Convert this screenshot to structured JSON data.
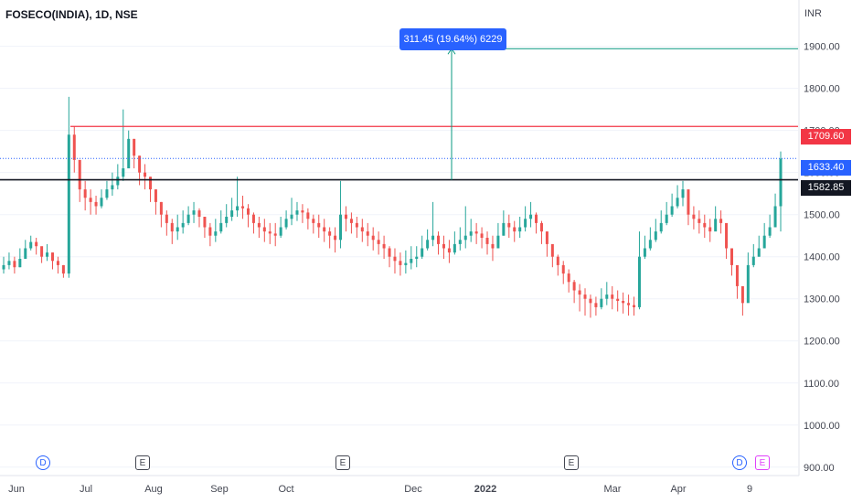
{
  "header": {
    "symbol_title": "FOSECO(INDIA), 1D, NSE",
    "currency": "INR"
  },
  "measure_callout": {
    "text": "311.45 (19.64%) 6229"
  },
  "price_tags": {
    "resistance": "1709.60",
    "last": "1633.40",
    "support": "1582.85"
  },
  "events": [
    {
      "label": "D",
      "kind": "dividend"
    },
    {
      "label": "E",
      "kind": "earnings"
    },
    {
      "label": "E",
      "kind": "earnings"
    },
    {
      "label": "E",
      "kind": "earnings"
    },
    {
      "label": "D",
      "kind": "dividend"
    },
    {
      "label": "E",
      "kind": "earnings"
    }
  ],
  "colors": {
    "up": "#26a69a",
    "down": "#ef5350",
    "resistance": "#f23645",
    "measure": "#089981",
    "support": "#131722",
    "accent": "#2962ff"
  },
  "chart_data": {
    "type": "candlestick",
    "ylim": [
      880,
      2010
    ],
    "y_ticks": [
      "900.00",
      "1000.00",
      "1100.00",
      "1200.00",
      "1300.00",
      "1400.00",
      "1500.00",
      "1600.00",
      "1700.00",
      "1800.00",
      "1900.00"
    ],
    "x_ticks": [
      "Jun",
      "Jul",
      "Aug",
      "Sep",
      "Oct",
      "Dec",
      "2022",
      "Mar",
      "Apr",
      "9"
    ],
    "horizontal_lines": [
      {
        "name": "resistance",
        "value": 1709.6
      },
      {
        "name": "last",
        "value": 1633.4
      },
      {
        "name": "support",
        "value": 1582.85
      }
    ],
    "measure": {
      "from": 1582.85,
      "to": 1894.3,
      "change": 311.45,
      "change_pct": 19.64,
      "bars": 6229
    },
    "close_series": [
      1380,
      1390,
      1375,
      1395,
      1420,
      1435,
      1425,
      1400,
      1410,
      1390,
      1380,
      1360,
      1690,
      1630,
      1560,
      1540,
      1530,
      1520,
      1540,
      1560,
      1570,
      1590,
      1610,
      1680,
      1640,
      1600,
      1590,
      1560,
      1530,
      1500,
      1480,
      1460,
      1470,
      1480,
      1500,
      1510,
      1495,
      1470,
      1450,
      1460,
      1480,
      1495,
      1510,
      1520,
      1515,
      1500,
      1480,
      1470,
      1460,
      1455,
      1450,
      1470,
      1490,
      1500,
      1510,
      1505,
      1490,
      1480,
      1470,
      1460,
      1450,
      1440,
      1500,
      1490,
      1480,
      1470,
      1460,
      1450,
      1440,
      1430,
      1420,
      1400,
      1390,
      1380,
      1385,
      1395,
      1400,
      1420,
      1440,
      1450,
      1430,
      1420,
      1410,
      1430,
      1440,
      1450,
      1460,
      1455,
      1445,
      1430,
      1420,
      1450,
      1480,
      1470,
      1460,
      1470,
      1490,
      1500,
      1480,
      1460,
      1430,
      1400,
      1380,
      1360,
      1340,
      1320,
      1310,
      1300,
      1290,
      1280,
      1300,
      1310,
      1300,
      1295,
      1290,
      1285,
      1280,
      1400,
      1420,
      1440,
      1460,
      1480,
      1500,
      1520,
      1540,
      1560,
      1500,
      1490,
      1480,
      1470,
      1460,
      1490,
      1480,
      1420,
      1380,
      1330,
      1290,
      1380,
      1400,
      1420,
      1450,
      1470,
      1520,
      1633
    ],
    "high_series": [
      1400,
      1410,
      1400,
      1420,
      1440,
      1450,
      1445,
      1420,
      1430,
      1410,
      1400,
      1380,
      1780,
      1710,
      1620,
      1580,
      1560,
      1545,
      1560,
      1580,
      1600,
      1620,
      1750,
      1700,
      1680,
      1640,
      1620,
      1590,
      1560,
      1530,
      1510,
      1490,
      1500,
      1510,
      1520,
      1530,
      1515,
      1495,
      1480,
      1490,
      1510,
      1525,
      1540,
      1590,
      1545,
      1525,
      1505,
      1495,
      1490,
      1480,
      1480,
      1495,
      1510,
      1540,
      1530,
      1525,
      1515,
      1500,
      1500,
      1490,
      1470,
      1470,
      1580,
      1520,
      1505,
      1495,
      1490,
      1480,
      1470,
      1460,
      1450,
      1425,
      1420,
      1410,
      1415,
      1425,
      1425,
      1450,
      1465,
      1530,
      1460,
      1450,
      1440,
      1460,
      1470,
      1520,
      1490,
      1480,
      1470,
      1460,
      1450,
      1480,
      1510,
      1500,
      1485,
      1495,
      1520,
      1530,
      1505,
      1485,
      1460,
      1425,
      1405,
      1390,
      1370,
      1345,
      1335,
      1325,
      1310,
      1305,
      1325,
      1340,
      1330,
      1320,
      1315,
      1310,
      1305,
      1460,
      1450,
      1470,
      1490,
      1510,
      1530,
      1550,
      1570,
      1580,
      1530,
      1520,
      1510,
      1500,
      1490,
      1520,
      1510,
      1450,
      1410,
      1360,
      1320,
      1410,
      1430,
      1450,
      1480,
      1500,
      1550,
      1650
    ],
    "low_series": [
      1360,
      1370,
      1360,
      1375,
      1400,
      1415,
      1405,
      1385,
      1390,
      1370,
      1360,
      1350,
      1350,
      1600,
      1530,
      1510,
      1500,
      1500,
      1515,
      1535,
      1545,
      1560,
      1580,
      1620,
      1610,
      1570,
      1560,
      1530,
      1500,
      1470,
      1450,
      1430,
      1440,
      1455,
      1475,
      1480,
      1470,
      1445,
      1425,
      1435,
      1455,
      1470,
      1485,
      1495,
      1490,
      1470,
      1455,
      1445,
      1435,
      1430,
      1425,
      1445,
      1465,
      1475,
      1485,
      1480,
      1465,
      1455,
      1445,
      1435,
      1420,
      1410,
      1420,
      1460,
      1455,
      1445,
      1435,
      1425,
      1415,
      1405,
      1395,
      1375,
      1360,
      1355,
      1360,
      1370,
      1375,
      1395,
      1415,
      1425,
      1405,
      1395,
      1385,
      1405,
      1415,
      1420,
      1435,
      1430,
      1420,
      1405,
      1390,
      1420,
      1450,
      1445,
      1435,
      1445,
      1460,
      1470,
      1455,
      1430,
      1400,
      1375,
      1355,
      1335,
      1315,
      1290,
      1270,
      1260,
      1255,
      1260,
      1275,
      1285,
      1275,
      1270,
      1265,
      1260,
      1260,
      1275,
      1395,
      1415,
      1435,
      1455,
      1475,
      1495,
      1515,
      1520,
      1475,
      1465,
      1455,
      1445,
      1435,
      1465,
      1455,
      1395,
      1355,
      1300,
      1260,
      1360,
      1375,
      1400,
      1425,
      1445,
      1470,
      1460
    ]
  }
}
